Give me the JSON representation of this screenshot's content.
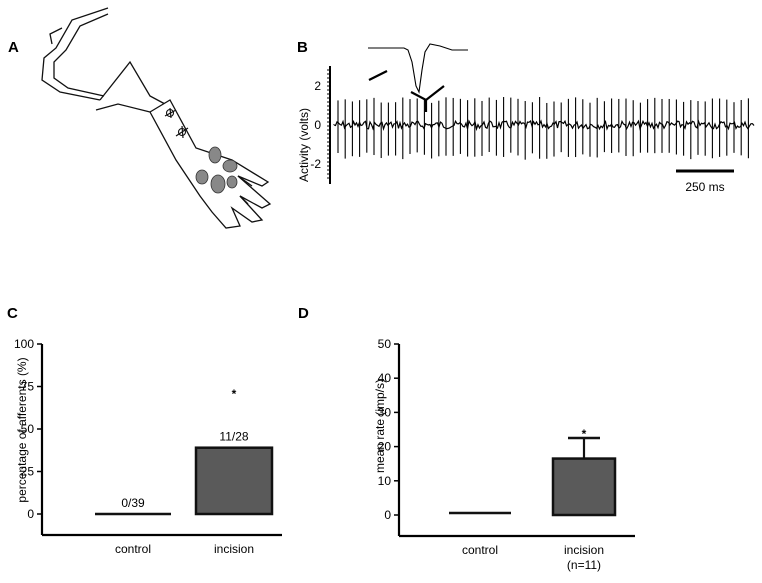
{
  "panels": {
    "A": {
      "letter": "A"
    },
    "B": {
      "letter": "B",
      "ylabel": "Activity (volts)",
      "yticks": [
        "2",
        "0",
        "-2"
      ],
      "scalebar_label": "250 ms"
    }
  },
  "chart_data": [
    {
      "panel": "C",
      "type": "bar",
      "categories": [
        "control",
        "incision"
      ],
      "values": [
        0,
        39
      ],
      "bar_labels": [
        "0/39",
        "11/28"
      ],
      "significance": [
        "",
        "*"
      ],
      "ylabel": "percentage of afferents (%)",
      "yticks": [
        0,
        25,
        50,
        75,
        100
      ],
      "ylim": [
        0,
        100
      ],
      "bar_color": "#5a5a5a",
      "grid": false
    },
    {
      "panel": "D",
      "type": "bar",
      "categories": [
        "control",
        "incision"
      ],
      "category_sublabels": [
        "",
        "(n=11)"
      ],
      "values": [
        0.6,
        16.5
      ],
      "error_upper": [
        0,
        6
      ],
      "significance": [
        "",
        "*"
      ],
      "ylabel": "mean rate (imp/s)",
      "yticks": [
        0,
        10,
        20,
        30,
        40,
        50
      ],
      "ylim": [
        0,
        50
      ],
      "bar_color": "#5a5a5a",
      "grid": false
    }
  ]
}
